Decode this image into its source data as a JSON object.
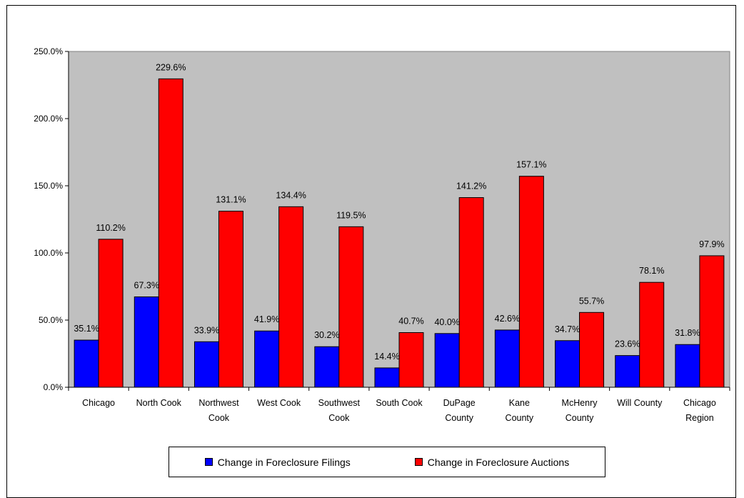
{
  "chart_data": {
    "type": "bar",
    "title": "",
    "xlabel": "",
    "ylabel": "",
    "ylim": [
      0,
      250
    ],
    "yticks": [
      "0.0%",
      "50.0%",
      "100.0%",
      "150.0%",
      "200.0%",
      "250.0%"
    ],
    "grid": false,
    "plot_background": "#c0c0c0",
    "legend_position": "bottom",
    "categories": [
      [
        "Chicago"
      ],
      [
        "North Cook"
      ],
      [
        "Northwest",
        "Cook"
      ],
      [
        "West Cook"
      ],
      [
        "Southwest",
        "Cook"
      ],
      [
        "South Cook"
      ],
      [
        "DuPage",
        "County"
      ],
      [
        "Kane",
        "County"
      ],
      [
        "McHenry",
        "County"
      ],
      [
        "Will County"
      ],
      [
        "Chicago",
        "Region"
      ]
    ],
    "series": [
      {
        "name": "Change in Foreclosure Filings",
        "color": "#0000ff",
        "values": [
          35.1,
          67.3,
          33.9,
          41.9,
          30.2,
          14.4,
          40.0,
          42.6,
          34.7,
          23.6,
          31.8
        ],
        "labels": [
          "35.1%",
          "67.3%",
          "33.9%",
          "41.9%",
          "30.2%",
          "14.4%",
          "40.0%",
          "42.6%",
          "34.7%",
          "23.6%",
          "31.8%"
        ]
      },
      {
        "name": "Change in Foreclosure Auctions",
        "color": "#ff0000",
        "values": [
          110.2,
          229.6,
          131.1,
          134.4,
          119.5,
          40.7,
          141.2,
          157.1,
          55.7,
          78.1,
          97.9
        ],
        "labels": [
          "110.2%",
          "229.6%",
          "131.1%",
          "134.4%",
          "119.5%",
          "40.7%",
          "141.2%",
          "157.1%",
          "55.7%",
          "78.1%",
          "97.9%"
        ]
      }
    ]
  },
  "legend": {
    "items": [
      {
        "label": "Change in Foreclosure Filings",
        "color": "#0000ff"
      },
      {
        "label": "Change in Foreclosure Auctions",
        "color": "#ff0000"
      }
    ]
  }
}
